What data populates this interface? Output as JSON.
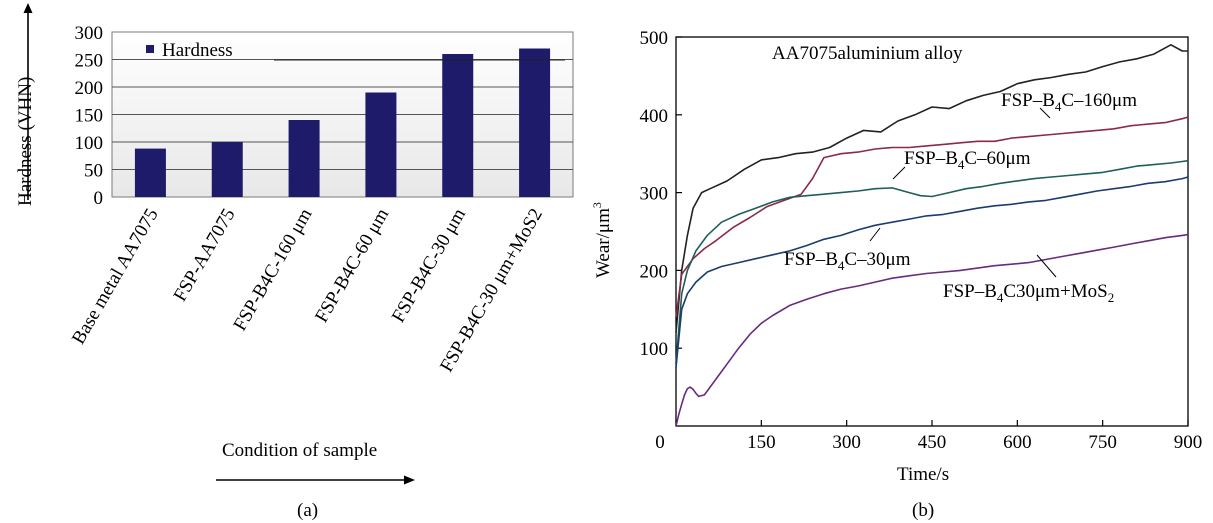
{
  "chart_data": [
    {
      "type": "bar",
      "panel_label": "(a)",
      "ylabel": "Hardness (VHN)",
      "xlabel": "Condition of sample",
      "legend": "Hardness",
      "legend_position": "top-left",
      "ylim": [
        0,
        300
      ],
      "yticks": [
        "0",
        "50",
        "100",
        "150",
        "200",
        "250",
        "300"
      ],
      "grid": true,
      "bar_color": "#1f1b6b",
      "categories": [
        "Base metal AA7075",
        "FSP-AA7075",
        "FSP-B4C-160 μm",
        "FSP-B4C-60 μm",
        "FSP-B4C-30 μm",
        "FSP-B4C-30 μm+MoS2"
      ],
      "values": [
        88,
        100,
        140,
        190,
        260,
        270
      ]
    },
    {
      "type": "line",
      "panel_label": "(b)",
      "xlabel": "Time/s",
      "ylabel": "Wear/μm",
      "ylabel_superscript": "3",
      "xlim": [
        0,
        900
      ],
      "ylim": [
        0,
        500
      ],
      "xticks": [
        "0",
        "150",
        "300",
        "450",
        "600",
        "750",
        "900"
      ],
      "yticks": [
        "100",
        "200",
        "300",
        "400",
        "500"
      ],
      "grid": false,
      "series": [
        {
          "name": "AA7075aluminium alloy",
          "color": "#222222",
          "x": [
            0,
            10,
            20,
            30,
            45,
            60,
            90,
            120,
            150,
            180,
            210,
            240,
            270,
            300,
            330,
            360,
            390,
            420,
            450,
            480,
            510,
            540,
            570,
            600,
            630,
            660,
            690,
            720,
            750,
            780,
            810,
            840,
            870,
            890,
            900
          ],
          "y": [
            120,
            200,
            245,
            280,
            300,
            305,
            315,
            330,
            342,
            345,
            350,
            352,
            358,
            370,
            380,
            378,
            392,
            400,
            410,
            408,
            418,
            425,
            430,
            440,
            445,
            448,
            452,
            455,
            462,
            468,
            472,
            478,
            490,
            482,
            482
          ]
        },
        {
          "name": "FSP–B",
          "name_sub": "4",
          "name_suffix": "C–160μm",
          "color": "#8a2a4a",
          "x": [
            0,
            10,
            20,
            30,
            50,
            70,
            100,
            130,
            160,
            190,
            220,
            240,
            260,
            290,
            320,
            350,
            380,
            410,
            440,
            470,
            500,
            530,
            560,
            590,
            620,
            650,
            680,
            710,
            740,
            770,
            800,
            830,
            860,
            890,
            900
          ],
          "y": [
            140,
            195,
            205,
            215,
            228,
            238,
            255,
            268,
            282,
            290,
            298,
            318,
            345,
            350,
            352,
            356,
            358,
            358,
            360,
            362,
            364,
            366,
            366,
            370,
            372,
            374,
            376,
            378,
            380,
            382,
            386,
            388,
            390,
            395,
            397
          ]
        },
        {
          "name": "FSP–B",
          "name_sub": "4",
          "name_suffix": "C–60μm",
          "color": "#1f5e5a",
          "x": [
            0,
            10,
            20,
            35,
            55,
            80,
            110,
            140,
            170,
            200,
            230,
            260,
            290,
            320,
            350,
            380,
            410,
            430,
            450,
            480,
            510,
            540,
            570,
            600,
            630,
            660,
            690,
            720,
            750,
            780,
            810,
            840,
            870,
            890,
            900
          ],
          "y": [
            80,
            170,
            200,
            225,
            245,
            262,
            272,
            280,
            288,
            294,
            296,
            298,
            300,
            302,
            305,
            306,
            300,
            296,
            295,
            300,
            305,
            308,
            312,
            315,
            318,
            320,
            322,
            324,
            326,
            330,
            334,
            336,
            338,
            340,
            341
          ]
        },
        {
          "name": "FSP–B",
          "name_sub": "4",
          "name_suffix": "C–30μm",
          "color": "#1a3c6e",
          "x": [
            0,
            10,
            20,
            35,
            55,
            80,
            110,
            140,
            170,
            200,
            230,
            260,
            290,
            320,
            350,
            380,
            410,
            440,
            470,
            500,
            530,
            560,
            590,
            620,
            650,
            680,
            710,
            740,
            770,
            800,
            830,
            860,
            890,
            900
          ],
          "y": [
            75,
            150,
            170,
            185,
            198,
            205,
            210,
            215,
            220,
            225,
            232,
            240,
            245,
            252,
            258,
            262,
            266,
            270,
            272,
            276,
            280,
            283,
            285,
            288,
            290,
            294,
            298,
            302,
            305,
            308,
            312,
            314,
            318,
            320
          ]
        },
        {
          "name": "FSP–B",
          "name_sub": "4",
          "name_suffix": "C30μm+MoS",
          "name_suffix_sub": "2",
          "color": "#6a2a7e",
          "x": [
            0,
            5,
            10,
            15,
            20,
            25,
            30,
            35,
            40,
            50,
            60,
            75,
            90,
            110,
            130,
            150,
            170,
            200,
            230,
            260,
            290,
            320,
            350,
            380,
            410,
            440,
            470,
            500,
            530,
            560,
            590,
            620,
            650,
            680,
            710,
            740,
            770,
            800,
            830,
            860,
            890,
            900
          ],
          "y": [
            0,
            15,
            28,
            40,
            48,
            50,
            47,
            42,
            38,
            40,
            50,
            65,
            80,
            100,
            118,
            132,
            142,
            155,
            163,
            170,
            176,
            180,
            185,
            190,
            193,
            196,
            198,
            200,
            203,
            206,
            208,
            210,
            214,
            218,
            222,
            226,
            230,
            234,
            238,
            242,
            245,
            246
          ]
        }
      ]
    }
  ]
}
